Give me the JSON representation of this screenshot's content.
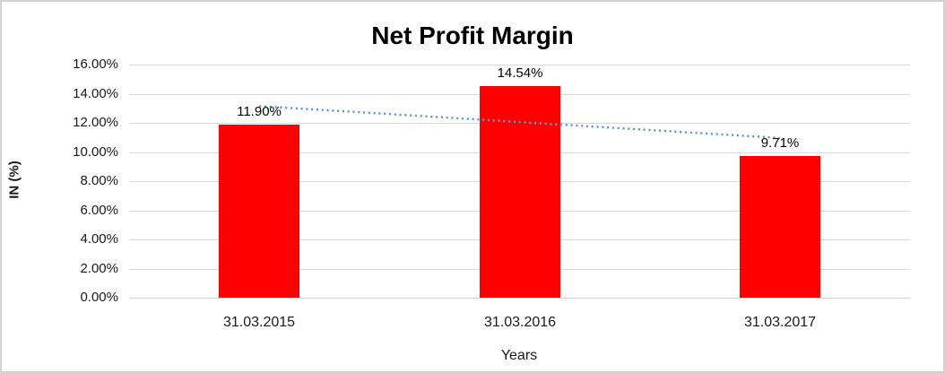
{
  "chart_data": {
    "type": "bar",
    "title": "Net Profit Margin",
    "categories": [
      "31.03.2015",
      "31.03.2016",
      "31.03.2017"
    ],
    "values": [
      11.9,
      14.54,
      9.71
    ],
    "data_labels": [
      "11.90%",
      "14.54%",
      "9.71%"
    ],
    "xlabel": "Years",
    "ylabel": "IN (%)",
    "ylim": [
      0,
      16
    ],
    "ytick_step": 2,
    "ytick_labels": [
      "0.00%",
      "2.00%",
      "4.00%",
      "6.00%",
      "8.00%",
      "10.00%",
      "12.00%",
      "14.00%",
      "16.00%"
    ],
    "grid": "horizontal",
    "legend": "none",
    "bar_color": "#ff0000",
    "gridline_color": "#d9d9d9",
    "axis_line_color": "#d0d0d0",
    "trendline": {
      "type": "linear",
      "style": "dotted",
      "color": "#5b9bd5",
      "values": [
        13.15,
        12.05,
        10.96
      ]
    }
  }
}
